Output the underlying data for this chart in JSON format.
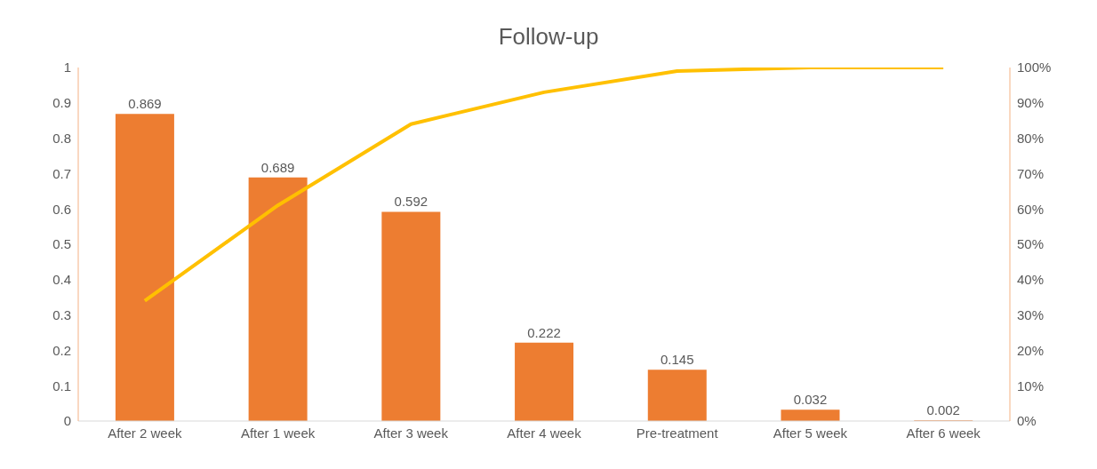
{
  "chart_data": {
    "type": "bar",
    "title": "Follow-up",
    "categories": [
      "After 2 week",
      "After 1 week",
      "After 3 week",
      "After 4 week",
      "Pre-treatment",
      "After 5 week",
      "After 6 week"
    ],
    "series": [
      {
        "color": "#ed7d31",
        "values": [
          0.869,
          0.689,
          0.592,
          0.222,
          0.145,
          0.032,
          0.002
        ],
        "value_labels": [
          "0.869",
          "0.689",
          "0.592",
          "0.222",
          "0.145",
          "0.032",
          "0.002"
        ]
      },
      {
        "type": "line",
        "axis": "y2",
        "color": "#ffc000",
        "values": [
          34,
          61,
          84,
          93,
          99,
          100,
          100
        ]
      }
    ],
    "ylim": [
      0,
      1
    ],
    "yticks": [
      0,
      0.1,
      0.2,
      0.3,
      0.4,
      0.5,
      0.6,
      0.7,
      0.8,
      0.9,
      1
    ],
    "y2lim": [
      0,
      100
    ],
    "y2ticks": [
      {
        "value": 0,
        "label": "0%"
      },
      {
        "value": 10,
        "label": "10%"
      },
      {
        "value": 20,
        "label": "20%"
      },
      {
        "value": 30,
        "label": "30%"
      },
      {
        "value": 40,
        "label": "40%"
      },
      {
        "value": 50,
        "label": "50%"
      },
      {
        "value": 60,
        "label": "60%"
      },
      {
        "value": 70,
        "label": "70%"
      },
      {
        "value": 80,
        "label": "80%"
      },
      {
        "value": 90,
        "label": "90%"
      },
      {
        "value": 100,
        "label": "100%"
      }
    ],
    "grid": false,
    "legend": false,
    "marker": "none"
  }
}
